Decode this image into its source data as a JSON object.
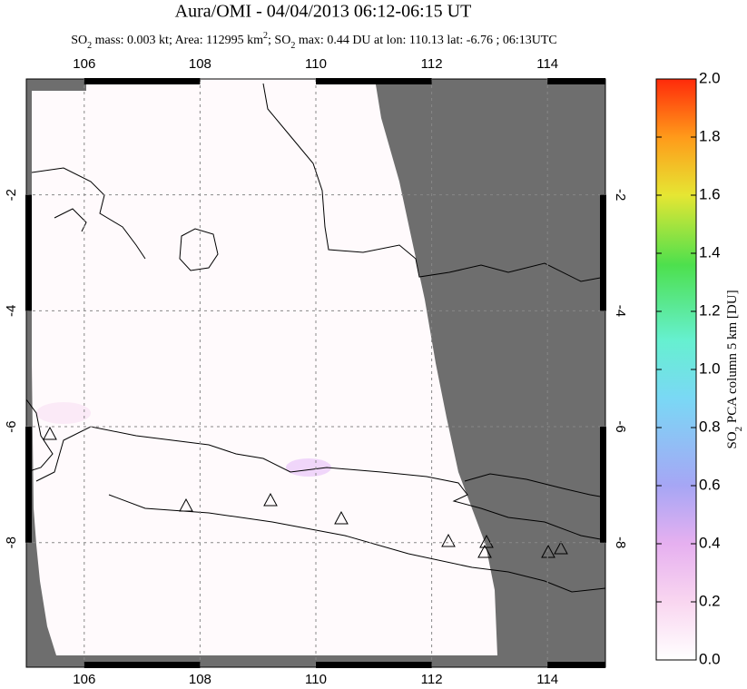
{
  "chart_data": {
    "type": "map",
    "title": "Aura/OMI - 04/04/2013 06:12-06:15 UT",
    "subtitle_parts": [
      "SO",
      "2",
      " mass: 0.003 kt; Area: 112995 km",
      "2",
      "; SO",
      "2",
      " max: 0.44 DU at lon: 110.13 lat: -6.76 ; 06:13UTC"
    ],
    "xlim": [
      105,
      115
    ],
    "xticks": [
      106,
      108,
      110,
      112,
      114
    ],
    "ylim": [
      -10.15,
      0
    ],
    "yticks": [
      -2,
      -4,
      -6,
      -8
    ],
    "grid": true,
    "colorbar": {
      "label_parts": [
        "SO",
        "2",
        " PCA column 5 km [DU]"
      ],
      "lim": [
        0,
        2
      ],
      "ticks": [
        {
          "value": 0,
          "label": "0.0"
        },
        {
          "value": 0.2,
          "label": "0.2"
        },
        {
          "value": 0.4,
          "label": "0.4"
        },
        {
          "value": 0.6,
          "label": "0.6"
        },
        {
          "value": 0.8,
          "label": "0.8"
        },
        {
          "value": 1,
          "label": "1.0"
        },
        {
          "value": 1.2,
          "label": "1.2"
        },
        {
          "value": 1.4,
          "label": "1.4"
        },
        {
          "value": 1.6,
          "label": "1.6"
        },
        {
          "value": 1.8,
          "label": "1.8"
        },
        {
          "value": 2,
          "label": "2.0"
        }
      ]
    }
  }
}
